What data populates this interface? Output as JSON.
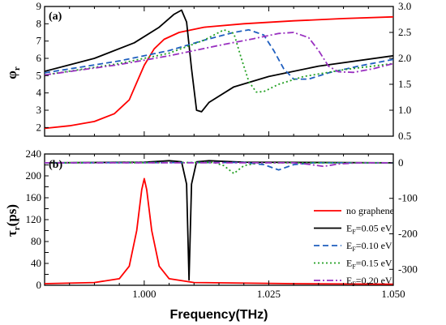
{
  "chart_data": [
    {
      "panel": "(a)",
      "type": "line",
      "ylabel": "φr",
      "xlim": [
        0.98,
        1.05
      ],
      "ylim_left": [
        1.5,
        9
      ],
      "ylim_right": [
        0.5,
        3.0
      ],
      "yticks_left": [
        2,
        3,
        4,
        5,
        6,
        7,
        8,
        9
      ],
      "yticks_right": [
        0.5,
        1.0,
        1.5,
        2.0,
        2.5,
        3.0
      ],
      "series": [
        {
          "label_key": "no graphene",
          "axis": "left",
          "color": "#ff0000",
          "dash": "solid",
          "points": [
            [
              0.98,
              1.95
            ],
            [
              0.985,
              2.1
            ],
            [
              0.99,
              2.35
            ],
            [
              0.994,
              2.8
            ],
            [
              0.997,
              3.6
            ],
            [
              0.9985,
              4.6
            ],
            [
              1.0,
              5.6
            ],
            [
              1.002,
              6.55
            ],
            [
              1.004,
              7.1
            ],
            [
              1.007,
              7.5
            ],
            [
              1.012,
              7.8
            ],
            [
              1.02,
              8.0
            ],
            [
              1.03,
              8.17
            ],
            [
              1.04,
              8.3
            ],
            [
              1.05,
              8.4
            ]
          ]
        },
        {
          "label_key": "EF=0.05 eV",
          "axis": "right",
          "color": "#000000",
          "dash": "solid",
          "points": [
            [
              0.98,
              1.75
            ],
            [
              0.99,
              2.0
            ],
            [
              0.998,
              2.3
            ],
            [
              1.003,
              2.6
            ],
            [
              1.006,
              2.85
            ],
            [
              1.0075,
              2.93
            ],
            [
              1.0085,
              2.7
            ],
            [
              1.0095,
              1.8
            ],
            [
              1.0105,
              1.0
            ],
            [
              1.0115,
              0.97
            ],
            [
              1.013,
              1.15
            ],
            [
              1.018,
              1.45
            ],
            [
              1.025,
              1.65
            ],
            [
              1.035,
              1.85
            ],
            [
              1.05,
              2.05
            ]
          ]
        },
        {
          "label_key": "EF=0.10 eV",
          "axis": "right",
          "color": "#1f5fbf",
          "dash": "dash",
          "points": [
            [
              0.98,
              1.72
            ],
            [
              0.995,
              1.95
            ],
            [
              1.005,
              2.15
            ],
            [
              1.012,
              2.35
            ],
            [
              1.018,
              2.5
            ],
            [
              1.021,
              2.55
            ],
            [
              1.024,
              2.45
            ],
            [
              1.026,
              2.15
            ],
            [
              1.028,
              1.8
            ],
            [
              1.03,
              1.6
            ],
            [
              1.033,
              1.6
            ],
            [
              1.037,
              1.72
            ],
            [
              1.043,
              1.85
            ],
            [
              1.05,
              1.98
            ]
          ]
        },
        {
          "label_key": "EF=0.15 eV",
          "axis": "right",
          "color": "#22a022",
          "dash": "dot",
          "points": [
            [
              0.98,
              1.68
            ],
            [
              0.995,
              1.9
            ],
            [
              1.005,
              2.1
            ],
            [
              1.012,
              2.35
            ],
            [
              1.016,
              2.55
            ],
            [
              1.018,
              2.48
            ],
            [
              1.0195,
              2.0
            ],
            [
              1.021,
              1.55
            ],
            [
              1.0225,
              1.35
            ],
            [
              1.024,
              1.36
            ],
            [
              1.027,
              1.5
            ],
            [
              1.032,
              1.65
            ],
            [
              1.04,
              1.78
            ],
            [
              1.05,
              1.9
            ]
          ]
        },
        {
          "label_key": "EF=0.20 eV",
          "axis": "right",
          "color": "#9930c0",
          "dash": "dashdot",
          "points": [
            [
              0.98,
              1.68
            ],
            [
              0.995,
              1.88
            ],
            [
              1.005,
              2.05
            ],
            [
              1.015,
              2.25
            ],
            [
              1.022,
              2.38
            ],
            [
              1.027,
              2.48
            ],
            [
              1.03,
              2.5
            ],
            [
              1.033,
              2.4
            ],
            [
              1.035,
              2.15
            ],
            [
              1.037,
              1.85
            ],
            [
              1.039,
              1.74
            ],
            [
              1.042,
              1.73
            ],
            [
              1.046,
              1.8
            ],
            [
              1.05,
              1.9
            ]
          ]
        }
      ]
    },
    {
      "panel": "(b)",
      "type": "line",
      "ylabel": "τr(ps)",
      "xlabel": "Frequency(THz)",
      "xlim": [
        0.98,
        1.05
      ],
      "ylim_left": [
        0,
        240
      ],
      "ylim_right": [
        -345,
        25
      ],
      "xticks": [
        "1.000",
        "1.025",
        "1.050"
      ],
      "yticks_left": [
        0,
        20,
        40,
        60,
        80,
        100,
        120,
        140,
        160,
        180,
        200,
        220,
        240
      ],
      "yticks_right": [
        0,
        -100,
        -200,
        -300
      ],
      "series": [
        {
          "label_key": "no graphene",
          "axis": "left",
          "color": "#ff0000",
          "dash": "solid",
          "points": [
            [
              0.98,
              3
            ],
            [
              0.99,
              5
            ],
            [
              0.995,
              12
            ],
            [
              0.997,
              35
            ],
            [
              0.9985,
              100
            ],
            [
              0.9995,
              175
            ],
            [
              1.0,
              195
            ],
            [
              1.0005,
              175
            ],
            [
              1.0015,
              100
            ],
            [
              1.003,
              35
            ],
            [
              1.005,
              12
            ],
            [
              1.01,
              5
            ],
            [
              1.03,
              3
            ],
            [
              1.05,
              2
            ]
          ]
        },
        {
          "label_key": "EF=0.05 eV",
          "axis": "right",
          "color": "#000000",
          "dash": "solid",
          "points": [
            [
              0.98,
              0
            ],
            [
              1.0,
              2
            ],
            [
              1.005,
              6
            ],
            [
              1.0075,
              3
            ],
            [
              1.0085,
              -60
            ],
            [
              1.009,
              -330
            ],
            [
              1.0095,
              -60
            ],
            [
              1.0105,
              3
            ],
            [
              1.013,
              6
            ],
            [
              1.02,
              2
            ],
            [
              1.05,
              0
            ]
          ]
        },
        {
          "label_key": "EF=0.10 eV",
          "axis": "right",
          "color": "#1f5fbf",
          "dash": "dash",
          "points": [
            [
              0.98,
              0
            ],
            [
              1.02,
              1
            ],
            [
              1.024,
              -5
            ],
            [
              1.027,
              -20
            ],
            [
              1.03,
              -5
            ],
            [
              1.034,
              0
            ],
            [
              1.05,
              0
            ]
          ]
        },
        {
          "label_key": "EF=0.15 eV",
          "axis": "right",
          "color": "#22a022",
          "dash": "dot",
          "points": [
            [
              0.98,
              0
            ],
            [
              1.014,
              1
            ],
            [
              1.016,
              -8
            ],
            [
              1.018,
              -30
            ],
            [
              1.02,
              -8
            ],
            [
              1.023,
              0
            ],
            [
              1.05,
              0
            ]
          ]
        },
        {
          "label_key": "EF=0.20 eV",
          "axis": "right",
          "color": "#9930c0",
          "dash": "dashdot",
          "points": [
            [
              0.98,
              0
            ],
            [
              1.03,
              0
            ],
            [
              1.033,
              -4
            ],
            [
              1.036,
              -10
            ],
            [
              1.039,
              -3
            ],
            [
              1.043,
              0
            ],
            [
              1.05,
              0
            ]
          ]
        }
      ]
    }
  ],
  "legend": [
    {
      "label_main": "no graphene",
      "sub": "",
      "suffix": "",
      "color": "#ff0000",
      "dash": "solid"
    },
    {
      "label_main": "E",
      "sub": "F",
      "suffix": "=0.05 eV",
      "color": "#000000",
      "dash": "solid"
    },
    {
      "label_main": "E",
      "sub": "F",
      "suffix": "=0.10 eV",
      "color": "#1f5fbf",
      "dash": "dash"
    },
    {
      "label_main": "E",
      "sub": "F",
      "suffix": "=0.15 eV",
      "color": "#22a022",
      "dash": "dot"
    },
    {
      "label_main": "E",
      "sub": "F",
      "suffix": "=0.20 eV",
      "color": "#9930c0",
      "dash": "dashdot"
    }
  ],
  "labels": {
    "panel_a": "(a)",
    "panel_b": "(b)",
    "ylabel_a_main": "φ",
    "ylabel_a_sub": "r",
    "ylabel_b_main": "τ",
    "ylabel_b_sub": "r",
    "ylabel_b_suffix": "(ps)",
    "xlabel": "Frequency(THz)"
  }
}
